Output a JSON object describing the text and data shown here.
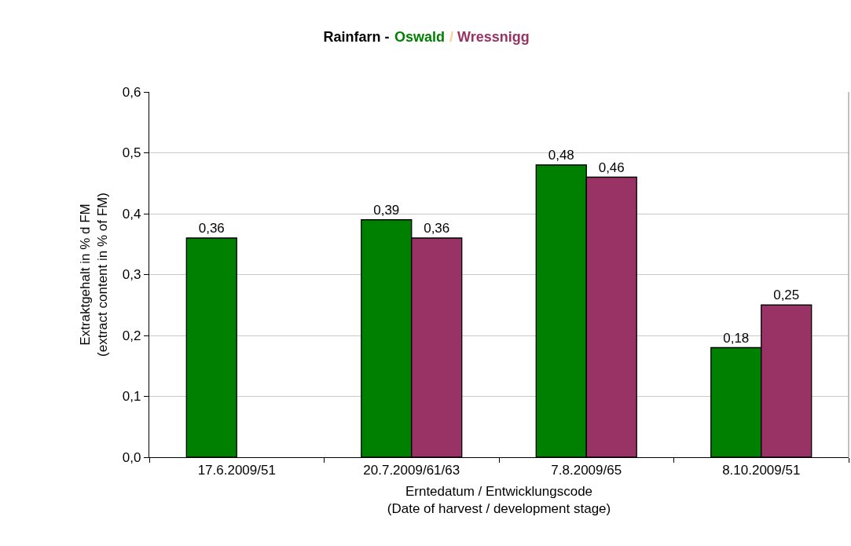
{
  "chart_data": {
    "type": "bar",
    "title": "Rainfarn -",
    "annotations": [
      "/"
    ],
    "xlabel": "Erntedatum / Entwicklungscode\n(Date of harvest / development stage)",
    "ylabel": "Extraktgehalt in % d FM\n(extract content in % of FM)",
    "categories": [
      "17.6.2009/51",
      "20.7.2009/61/63",
      "7.8.2009/65",
      "8.10.2009/51"
    ],
    "series": [
      {
        "name": "Oswald",
        "color": "#008000",
        "values": [
          0.36,
          0.39,
          0.48,
          0.18
        ],
        "value_labels": [
          "0,36",
          "0,39",
          "0,48",
          "0,18"
        ]
      },
      {
        "name": "Wressnigg",
        "color": "#993366",
        "values": [
          null,
          0.36,
          0.46,
          0.25
        ],
        "value_labels": [
          null,
          "0,36",
          "0,46",
          "0,25"
        ]
      }
    ],
    "ylim": [
      0,
      0.6
    ],
    "yticks": [
      {
        "value": 0,
        "label": "0,0"
      },
      {
        "value": 0.1,
        "label": "0,1"
      },
      {
        "value": 0.2,
        "label": "0,2"
      },
      {
        "value": 0.3,
        "label": "0,3"
      },
      {
        "value": 0.4,
        "label": "0,4"
      },
      {
        "value": 0.5,
        "label": "0,5"
      },
      {
        "value": 0.6,
        "label": "0,6"
      }
    ],
    "grid": "y",
    "legend": "top"
  }
}
